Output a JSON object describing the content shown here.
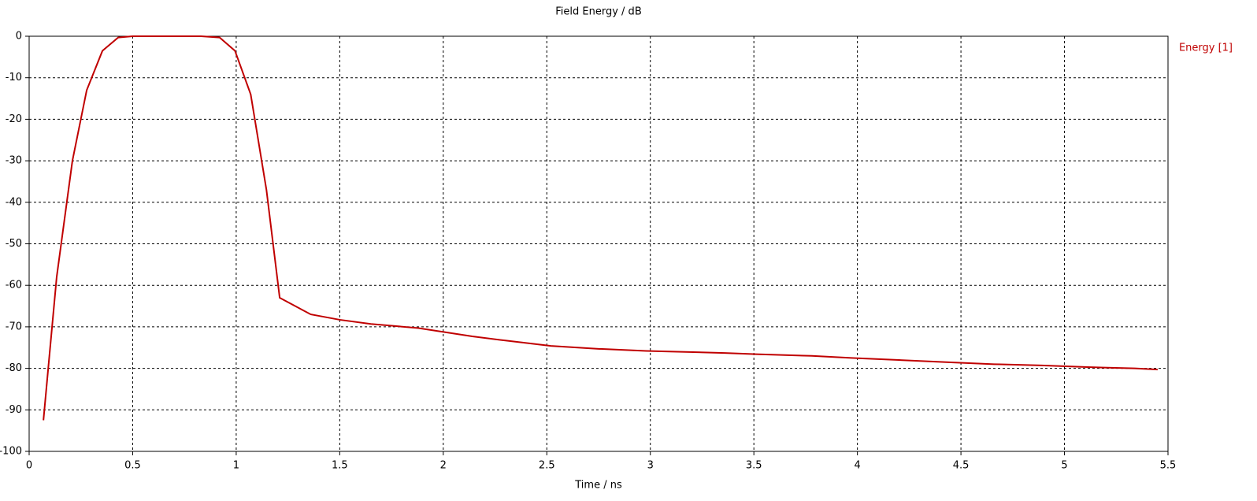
{
  "chart_data": {
    "type": "line",
    "title": "Field Energy / dB",
    "x_label": "Time / ns",
    "xlim": [
      0,
      5.5
    ],
    "xticks": [
      0,
      0.5,
      1,
      1.5,
      2,
      2.5,
      3,
      3.5,
      4,
      4.5,
      5,
      5.5
    ],
    "ylim": [
      -100,
      0
    ],
    "yticks": [
      0,
      -10,
      -20,
      -30,
      -40,
      -50,
      -60,
      -70,
      -80,
      -90,
      -100
    ],
    "grid": true,
    "legend": "right",
    "series": [
      {
        "name": "Energy [1]",
        "color": "#c00000",
        "x": [
          0.069,
          0.133,
          0.209,
          0.278,
          0.354,
          0.43,
          0.5,
          0.83,
          0.92,
          0.994,
          1.07,
          1.146,
          1.21,
          1.36,
          1.5,
          1.65,
          1.88,
          2.01,
          2.14,
          2.3,
          2.52,
          2.75,
          2.98,
          3.13,
          3.36,
          3.51,
          3.78,
          3.97,
          4.2,
          4.43,
          4.66,
          4.89,
          5.11,
          5.34,
          5.45
        ],
        "values": [
          -92.5,
          -58,
          -30,
          -13,
          -3.5,
          -0.3,
          0,
          0,
          -0.3,
          -3.5,
          -14,
          -37,
          -63,
          -67,
          -68.3,
          -69.3,
          -70.3,
          -71.3,
          -72.3,
          -73.3,
          -74.6,
          -75.3,
          -75.8,
          -76,
          -76.3,
          -76.6,
          -77,
          -77.5,
          -78,
          -78.5,
          -79,
          -79.3,
          -79.7,
          -80,
          -80.3
        ]
      }
    ]
  }
}
